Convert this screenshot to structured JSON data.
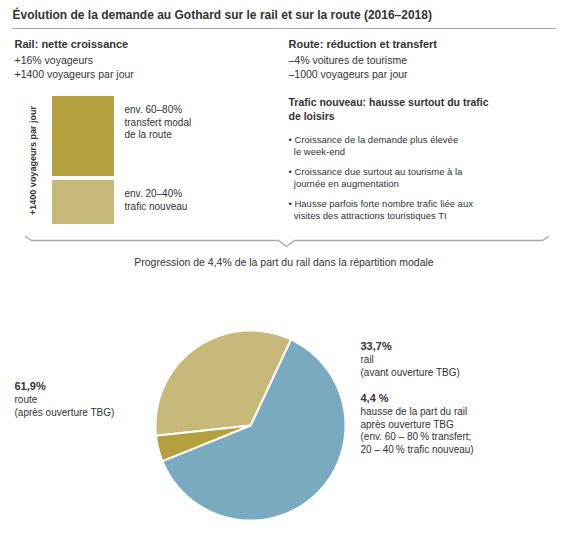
{
  "chart_data": {
    "type": "pie",
    "title": "Évolution de la demande au Gothard sur le rail et sur la route (2016–2018)",
    "categories": [
      "route\n(après ouverture TBG)",
      "rail\n(avant ouverture TBG)",
      "hausse de la part du rail\naprès ouverture TBG\n(env. 60 – 80 % transfert;\n20 – 40 % trafic nouveau)"
    ],
    "values": [
      61.9,
      33.7,
      4.4
    ],
    "value_labels": [
      "61,9%",
      "33,7%",
      "4,4 %"
    ],
    "colors": [
      "#7aaac0",
      "#c8b87a",
      "#b5a040"
    ],
    "annotations": [
      "Rail: nette croissance",
      "+16% voyageurs",
      "+1400 voyageurs par jour",
      "Route: réduction et transfert",
      "–4% voitures de tourisme",
      "–1000 voyageurs par jour",
      "+1400 voyageurs par jour",
      "env. 60–80%\ntransfert modal\nde la route",
      "env. 20–40%\ntrafic nouveau",
      "Trafic nouveau: hausse surtout du trafic\nde loisirs",
      "• Croissance de la demande plus élevée\n  le week-end",
      "• Croissance due surtout au tourisme à la\n  journée en augmentation",
      "• Hausse parfois forte nombre trafic liée aux\n  visites des attractions touristiques TI",
      "Progression de 4,4% de la part du rail dans la répartition modale"
    ]
  }
}
